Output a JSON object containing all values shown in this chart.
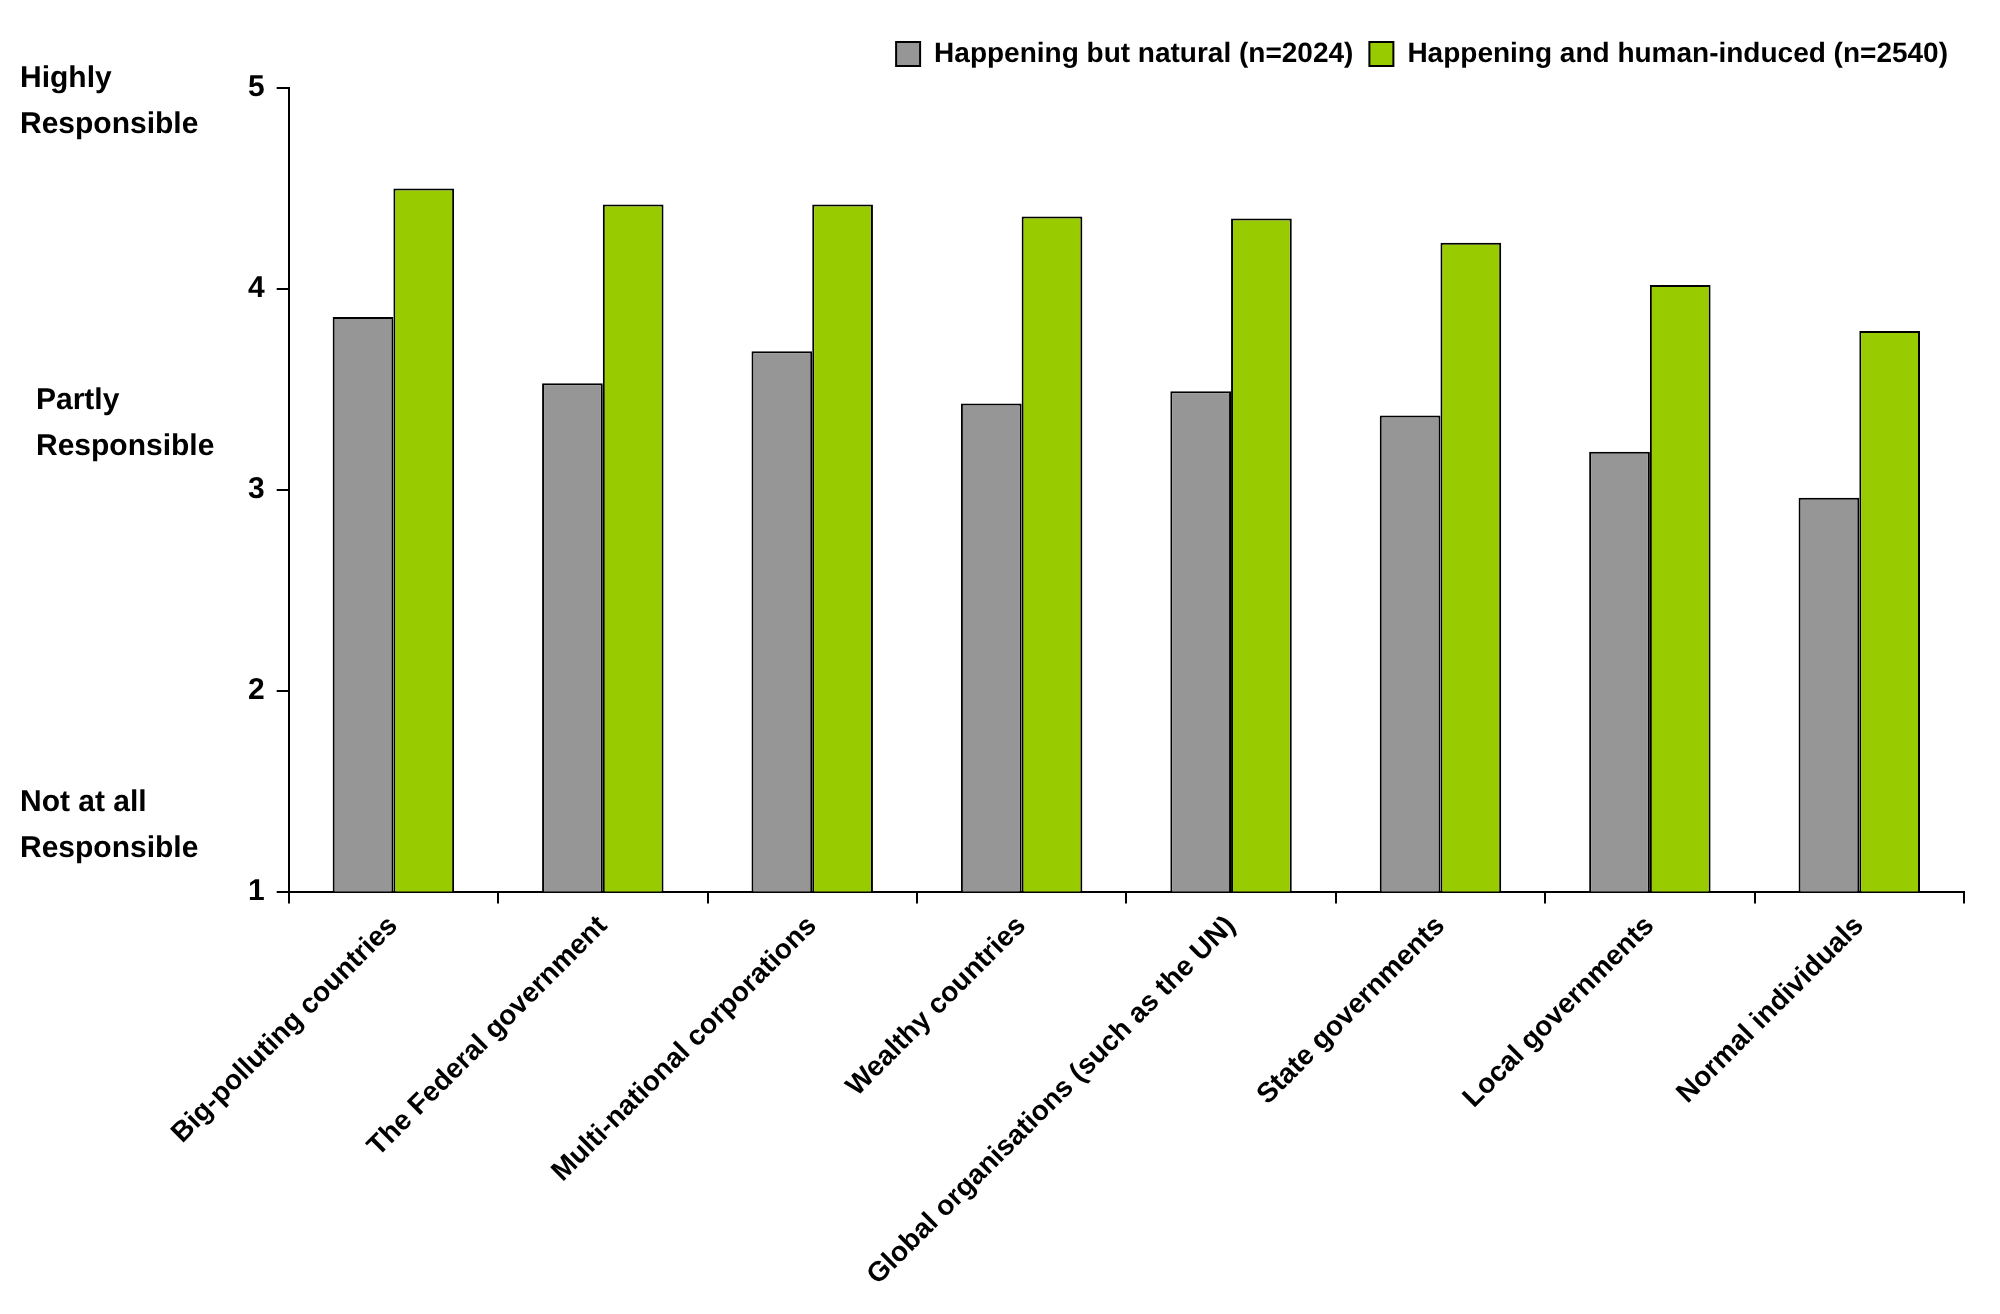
{
  "chart_data": {
    "type": "bar",
    "categories": [
      "Big-polluting countries",
      "The Federal government",
      "Multi-national corporations",
      "Wealthy countries",
      "Global organisations (such as the UN)",
      "State governments",
      "Local governments",
      "Normal individuals"
    ],
    "series": [
      {
        "name": "Happening but natural (n=2024)",
        "color": "#969696",
        "values": [
          3.86,
          3.53,
          3.69,
          3.43,
          3.49,
          3.37,
          3.19,
          2.96
        ]
      },
      {
        "name": "Happening and human-induced (n=2540)",
        "color": "#99cc00",
        "values": [
          4.5,
          4.42,
          4.42,
          4.36,
          4.35,
          4.23,
          4.02,
          3.79
        ]
      }
    ],
    "ylim": [
      1,
      5
    ],
    "yticks": [
      1,
      2,
      3,
      4,
      5
    ],
    "grid": false,
    "legend": "top right",
    "annotations": [
      "Highly Responsible",
      "Partly Responsible",
      "Not at all Responsible"
    ]
  }
}
